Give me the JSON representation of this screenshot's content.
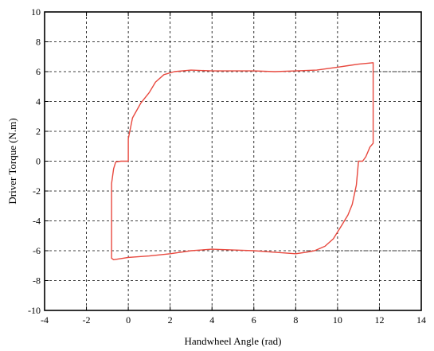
{
  "chart_data": {
    "type": "line",
    "xlabel": "Handwheel Angle (rad)",
    "ylabel": "Driver Torque (N.m)",
    "xlim": [
      -4,
      14
    ],
    "ylim": [
      -10,
      10
    ],
    "xticks": [
      -4,
      -2,
      0,
      2,
      4,
      6,
      8,
      10,
      12,
      14
    ],
    "yticks": [
      -10,
      -8,
      -6,
      -4,
      -2,
      0,
      2,
      4,
      6,
      8,
      10
    ],
    "grid": true,
    "grid_style": "dashed",
    "series": [
      {
        "color": "#e8493f",
        "points": [
          [
            0,
            0
          ],
          [
            0,
            1.5
          ],
          [
            0.2,
            2.9
          ],
          [
            0.6,
            3.9
          ],
          [
            1.0,
            4.6
          ],
          [
            1.3,
            5.3
          ],
          [
            1.7,
            5.8
          ],
          [
            2.2,
            6.0
          ],
          [
            3.0,
            6.1
          ],
          [
            4.0,
            6.05
          ],
          [
            5.0,
            6.05
          ],
          [
            6.0,
            6.05
          ],
          [
            7.0,
            6.0
          ],
          [
            8.0,
            6.05
          ],
          [
            9.0,
            6.1
          ],
          [
            10.0,
            6.3
          ],
          [
            10.5,
            6.4
          ],
          [
            11.0,
            6.5
          ],
          [
            11.7,
            6.6
          ],
          [
            11.7,
            6.3
          ],
          [
            11.7,
            3.0
          ],
          [
            11.7,
            1.2
          ],
          [
            11.55,
            0.95
          ],
          [
            11.35,
            0.3
          ],
          [
            11.2,
            0.0
          ],
          [
            11.0,
            0.0
          ],
          [
            10.9,
            -1.6
          ],
          [
            10.7,
            -2.9
          ],
          [
            10.5,
            -3.6
          ],
          [
            10.2,
            -4.3
          ],
          [
            9.8,
            -5.2
          ],
          [
            9.4,
            -5.7
          ],
          [
            8.9,
            -6.0
          ],
          [
            8.5,
            -6.1
          ],
          [
            8.0,
            -6.2
          ],
          [
            7.0,
            -6.1
          ],
          [
            6.0,
            -6.0
          ],
          [
            5.0,
            -5.95
          ],
          [
            4.0,
            -5.9
          ],
          [
            3.0,
            -6.0
          ],
          [
            2.0,
            -6.2
          ],
          [
            1.0,
            -6.35
          ],
          [
            0,
            -6.45
          ],
          [
            -0.7,
            -6.6
          ],
          [
            -0.8,
            -6.5
          ],
          [
            -0.8,
            -3.0
          ],
          [
            -0.8,
            -1.5
          ],
          [
            -0.7,
            -0.5
          ],
          [
            -0.6,
            -0.05
          ],
          [
            -0.35,
            0
          ],
          [
            0,
            0
          ]
        ]
      }
    ],
    "dotted_segments": [
      {
        "x": [
          11.7,
          14
        ],
        "y": 6
      },
      {
        "x": [
          8.5,
          14
        ],
        "y": -6
      }
    ]
  }
}
